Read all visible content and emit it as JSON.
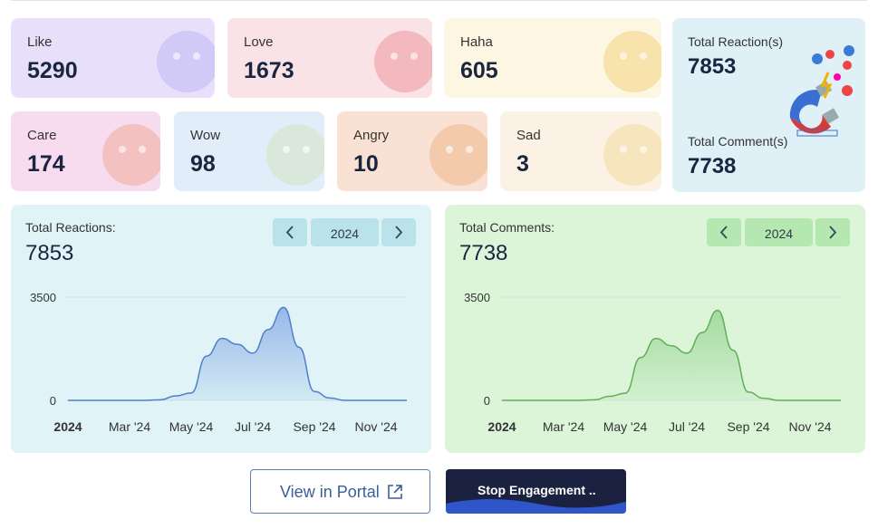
{
  "cards": [
    {
      "label": "Like",
      "value": 5290
    },
    {
      "label": "Love",
      "value": 1673
    },
    {
      "label": "Haha",
      "value": 605
    },
    {
      "label": "Care",
      "value": 174
    },
    {
      "label": "Wow",
      "value": 98
    },
    {
      "label": "Angry",
      "value": 10
    },
    {
      "label": "Sad",
      "value": 3
    }
  ],
  "summary": {
    "reactions_label": "Total Reaction(s)",
    "reactions": 7853,
    "comments_label": "Total Comment(s)",
    "comments": 7738
  },
  "charts": [
    {
      "type": "area",
      "title": "Total Reactions:",
      "total": 7853,
      "year": "2024",
      "color": "#4f7fcc",
      "fill": "#8fb2e8",
      "categories": [
        "2024",
        null,
        null,
        null,
        "Mar '24",
        null,
        null,
        null,
        "May '24",
        null,
        null,
        null,
        "Jul '24",
        null,
        null,
        null,
        "Sep '24",
        null,
        null,
        null,
        "Nov '24",
        null,
        null
      ],
      "values": [
        0,
        0,
        0,
        0,
        0,
        0,
        20,
        150,
        250,
        1500,
        2100,
        1900,
        1600,
        2400,
        3150,
        1800,
        300,
        80,
        0,
        0,
        0,
        0,
        0
      ],
      "ylim": [
        0,
        3500
      ],
      "yticks": [
        0,
        3500
      ],
      "grid": true
    },
    {
      "type": "area",
      "title": "Total Comments:",
      "total": 7738,
      "year": "2024",
      "color": "#5fae5a",
      "fill": "#9fd79a",
      "categories": [
        "2024",
        null,
        null,
        null,
        "Mar '24",
        null,
        null,
        null,
        "May '24",
        null,
        null,
        null,
        "Jul '24",
        null,
        null,
        null,
        "Sep '24",
        null,
        null,
        null,
        "Nov '24",
        null,
        null
      ],
      "values": [
        0,
        0,
        0,
        0,
        0,
        0,
        20,
        140,
        240,
        1450,
        2100,
        1850,
        1600,
        2300,
        3050,
        1700,
        280,
        70,
        0,
        0,
        0,
        0,
        0
      ],
      "ylim": [
        0,
        3500
      ],
      "yticks": [
        0,
        3500
      ],
      "grid": true
    }
  ],
  "buttons": {
    "view_portal": "View in Portal",
    "stop_engagement": "Stop Engagement .."
  }
}
